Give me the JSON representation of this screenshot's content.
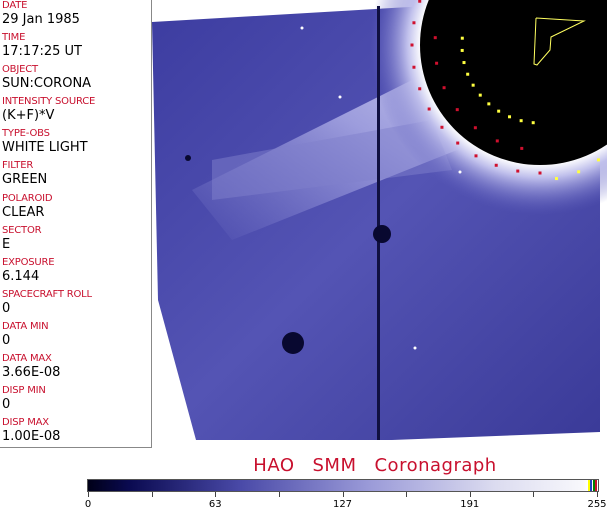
{
  "header_fields": [
    {
      "label": "DATE",
      "value": "29 Jan 1985"
    },
    {
      "label": "TIME",
      "value": "17:17:25 UT"
    },
    {
      "label": "OBJECT",
      "value": "SUN:CORONA"
    },
    {
      "label": "INTENSITY SOURCE",
      "value": "(K+F)*V"
    },
    {
      "label": "TYPE-OBS",
      "value": "WHITE LIGHT"
    },
    {
      "label": "FILTER",
      "value": "GREEN"
    },
    {
      "label": "POLAROID",
      "value": "CLEAR"
    },
    {
      "label": "SECTOR",
      "value": "E"
    },
    {
      "label": "EXPOSURE",
      "value": "6.144"
    },
    {
      "label": "SPACECRAFT ROLL",
      "value": "0"
    },
    {
      "label": "DATA MIN",
      "value": "0"
    },
    {
      "label": "DATA MAX",
      "value": "3.66E-08"
    },
    {
      "label": "DISP MIN",
      "value": "0"
    },
    {
      "label": "DISP MAX",
      "value": "1.00E-08"
    }
  ],
  "title": {
    "part1": "HAO",
    "part2": "SMM",
    "part3": "Coronagraph"
  },
  "colorbar": {
    "min": 0,
    "max": 255,
    "tick_labels": [
      "0",
      "63",
      "127",
      "191",
      "255"
    ],
    "colors": {
      "low": "#000018",
      "mid": "#4a4aa8",
      "high": "#ffffff"
    },
    "end_markers": [
      "#ffff00",
      "#2040c0",
      "#008000",
      "#c8102e"
    ]
  },
  "image": {
    "colormap_accent": "#4a4aa8",
    "overlay_colors": {
      "grid_red": "#d0102e",
      "grid_yellow": "#ffff40",
      "outline": "#ffff60"
    }
  }
}
